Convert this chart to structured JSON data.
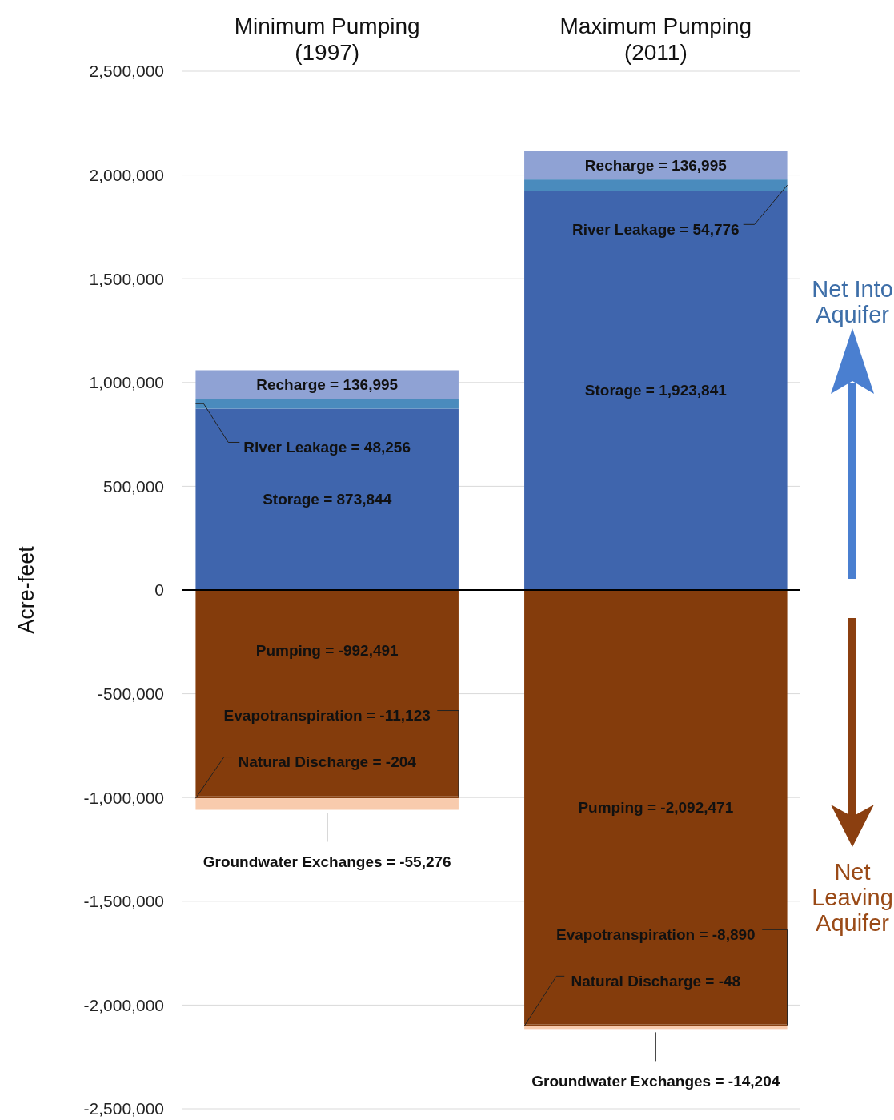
{
  "chart_data": {
    "type": "bar",
    "stacked": true,
    "categories": [
      "Minimum Pumping\n(1997)",
      "Maximum Pumping\n(2011)"
    ],
    "ylabel": "Acre-feet",
    "ylim": [
      -2500000,
      2500000
    ],
    "yticks": [
      {
        "value": 2500000,
        "label": "2,500,000"
      },
      {
        "value": 2000000,
        "label": "2,000,000"
      },
      {
        "value": 1500000,
        "label": "1,500,000"
      },
      {
        "value": 1000000,
        "label": "1,000,000"
      },
      {
        "value": 500000,
        "label": "500,000"
      },
      {
        "value": 0,
        "label": "0"
      },
      {
        "value": -500000,
        "label": "-500,000"
      },
      {
        "value": -1000000,
        "label": "-1,000,000"
      },
      {
        "value": -1500000,
        "label": "-1,500,000"
      },
      {
        "value": -2000000,
        "label": "-2,000,000"
      },
      {
        "value": -2500000,
        "label": "-2,500,000"
      }
    ],
    "grid": "y",
    "series": [
      {
        "color": "#3f65ad",
        "values": [
          873844,
          1923841
        ],
        "value_labels": [
          "Storage = 873,844",
          "Storage = 1,923,841"
        ]
      },
      {
        "color": "#4a8bbd",
        "values": [
          48256,
          54776
        ],
        "value_labels": [
          "River Leakage = 48,256",
          "River Leakage = 54,776"
        ]
      },
      {
        "color": "#8fa2d4",
        "values": [
          136995,
          136995
        ],
        "value_labels": [
          "Recharge = 136,995",
          "Recharge = 136,995"
        ]
      },
      {
        "color": "#843c0c",
        "values": [
          -992491,
          -2092471
        ],
        "value_labels": [
          "Pumping = -992,491",
          "Pumping = -2,092,471"
        ]
      },
      {
        "color": "#8a4212",
        "values": [
          -11123,
          -8890
        ],
        "value_labels": [
          "Evapotranspiration = -11,123",
          "Evapotranspiration = -8,890"
        ]
      },
      {
        "color": "#843c0c",
        "values": [
          -204,
          -48
        ],
        "value_labels": [
          "Natural Discharge = -204",
          "Natural Discharge = -48"
        ]
      },
      {
        "color": "#f8cbad",
        "values": [
          -55276,
          -14204
        ],
        "value_labels": [
          "Groundwater Exchanges = -55,276",
          "Groundwater Exchanges = -14,204"
        ]
      }
    ],
    "annotations": [
      "Net Into\nAquifer",
      "Net\nLeaving\nAquifer"
    ]
  }
}
